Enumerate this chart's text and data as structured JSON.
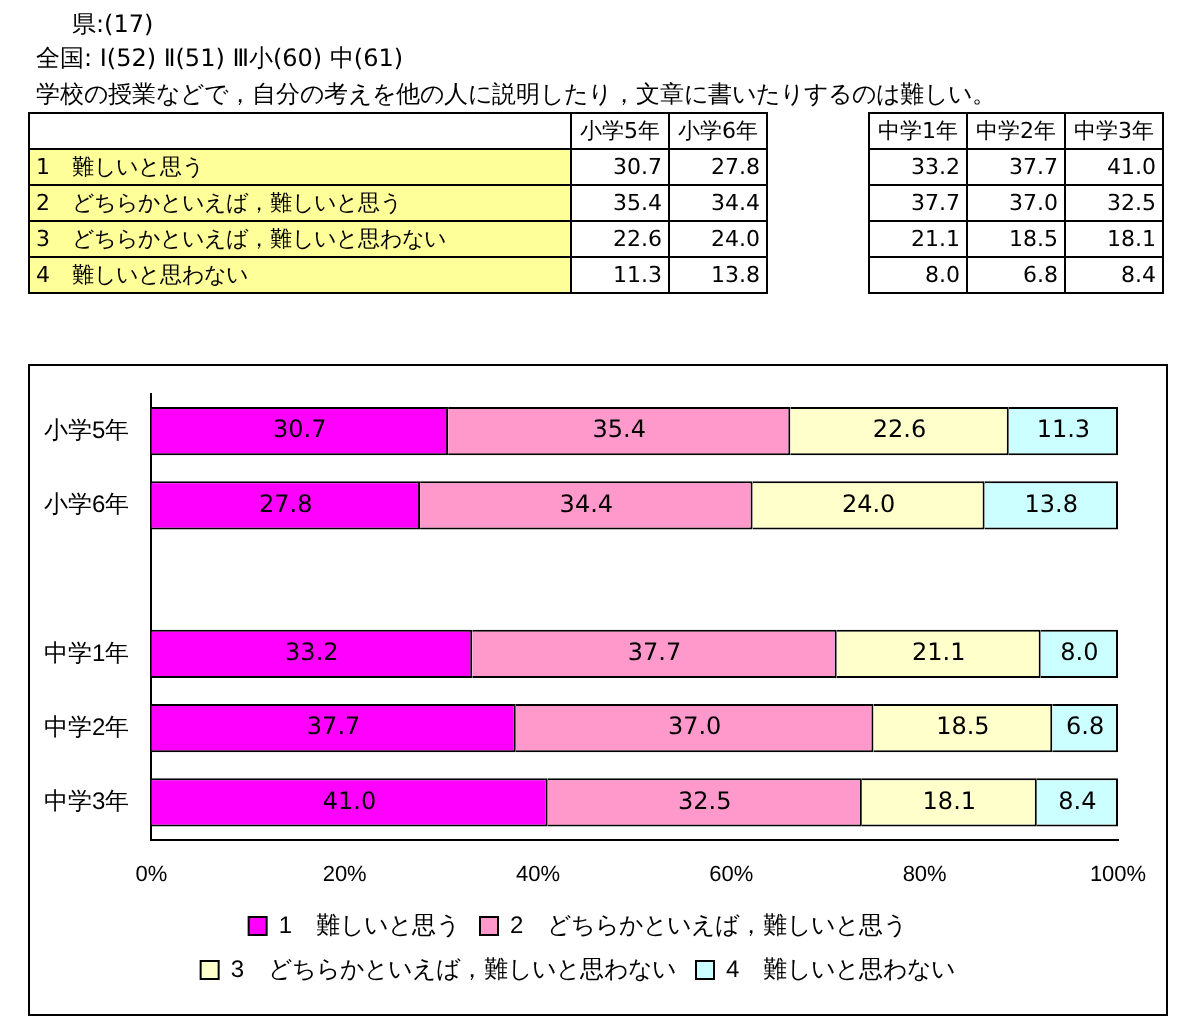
{
  "chart_data": {
    "type": "bar",
    "orientation": "horizontal",
    "stacked": true,
    "title": "学校の授業などで，自分の考えを他の人に説明したり，文章に書いたりするのは難しい。",
    "annotations": [
      "県:(17)",
      "全国: Ⅰ(52)  Ⅱ(51)  Ⅲ小(60) 中(61)"
    ],
    "categories": [
      "小学5年",
      "小学6年",
      null,
      "中学1年",
      "中学2年",
      "中学3年"
    ],
    "series": [
      {
        "name": "1　難しいと思う",
        "color": "#ff00ff",
        "values": [
          30.7,
          27.8,
          null,
          33.2,
          37.7,
          41.0
        ],
        "value_labels": [
          "30.7",
          "27.8",
          null,
          "33.2",
          "37.7",
          "41.0"
        ]
      },
      {
        "name": "2　どちらかといえば，難しいと思う",
        "color": "#ff99cc",
        "values": [
          35.4,
          34.4,
          null,
          37.7,
          37.0,
          32.5
        ],
        "value_labels": [
          "35.4",
          "34.4",
          null,
          "37.7",
          "37.0",
          "32.5"
        ]
      },
      {
        "name": "3　どちらかといえば，難しいと思わない",
        "color": "#ffffcc",
        "values": [
          22.6,
          24.0,
          null,
          21.1,
          18.5,
          18.1
        ],
        "value_labels": [
          "22.6",
          "24.0",
          null,
          "21.1",
          "18.5",
          "18.1"
        ]
      },
      {
        "name": "4　難しいと思わない",
        "color": "#ccffff",
        "values": [
          11.3,
          13.8,
          null,
          8.0,
          6.8,
          8.4
        ],
        "value_labels": [
          "11.3",
          "13.8",
          null,
          "8.0",
          "6.8",
          "8.4"
        ]
      }
    ],
    "xlim": [
      0,
      100
    ],
    "xticks": [
      {
        "value": 0,
        "label": "0%"
      },
      {
        "value": 20,
        "label": "20%"
      },
      {
        "value": 40,
        "label": "40%"
      },
      {
        "value": 60,
        "label": "60%"
      },
      {
        "value": 80,
        "label": "80%"
      },
      {
        "value": 100,
        "label": "100%"
      }
    ],
    "grid": false,
    "legend": "bottom"
  }
}
